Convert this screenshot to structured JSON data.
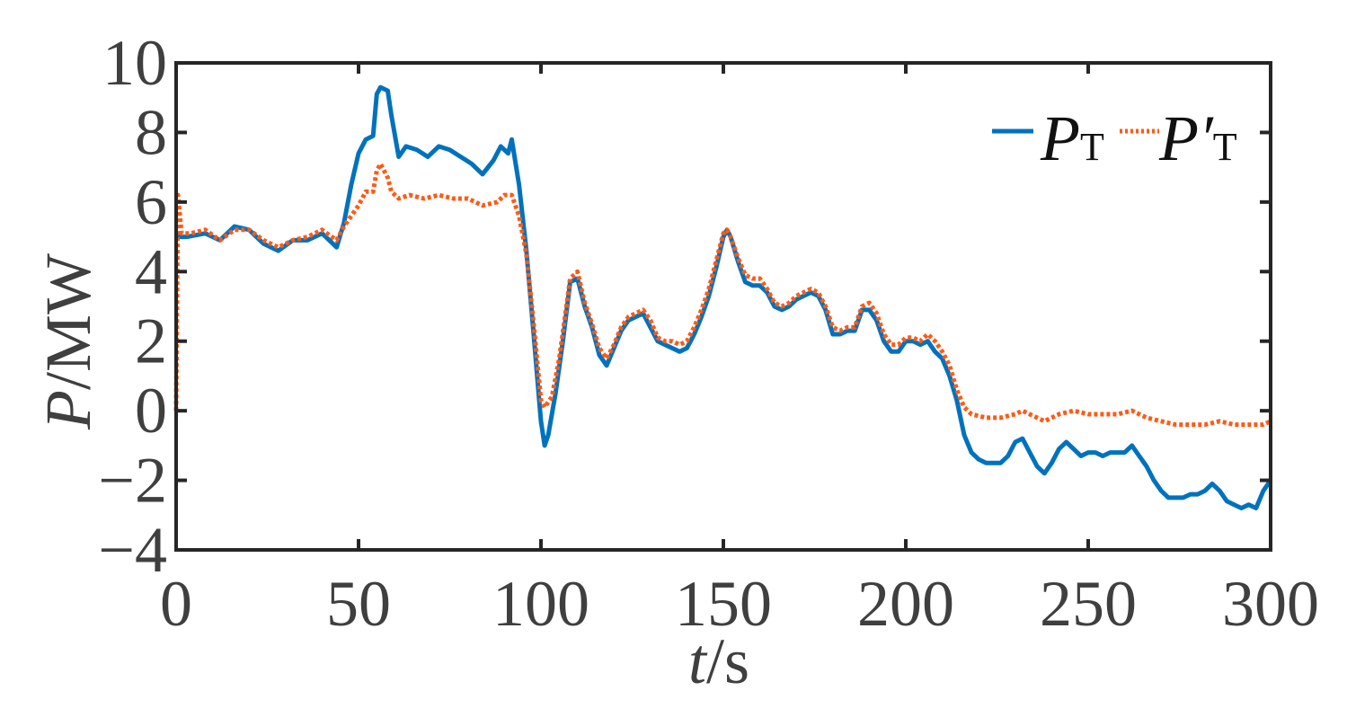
{
  "chart_data": {
    "type": "line",
    "xlabel_italic": "t",
    "xlabel_unit": "/s",
    "ylabel_italic": "P",
    "ylabel_unit": "/MW",
    "xlim": [
      0,
      300
    ],
    "ylim": [
      -4,
      10
    ],
    "xticks": [
      0,
      50,
      100,
      150,
      200,
      250,
      300
    ],
    "yticks": [
      -4,
      -2,
      0,
      2,
      4,
      6,
      8,
      10
    ],
    "xtick_labels": [
      "0",
      "50",
      "100",
      "150",
      "200",
      "250",
      "300"
    ],
    "ytick_labels": [
      "−4",
      "−2",
      "0",
      "2",
      "4",
      "6",
      "8",
      "10"
    ],
    "grid": false,
    "legend_position": "top-right",
    "series": [
      {
        "name": "P_T",
        "legend_main": "P",
        "legend_sub": "T",
        "color": "#0072bd",
        "style": "solid",
        "points": [
          [
            0,
            5.0
          ],
          [
            3,
            5.0
          ],
          [
            8,
            5.1
          ],
          [
            12,
            4.9
          ],
          [
            16,
            5.3
          ],
          [
            20,
            5.2
          ],
          [
            24,
            4.8
          ],
          [
            28,
            4.6
          ],
          [
            32,
            4.9
          ],
          [
            36,
            4.9
          ],
          [
            40,
            5.1
          ],
          [
            44,
            4.7
          ],
          [
            46,
            5.4
          ],
          [
            48,
            6.5
          ],
          [
            50,
            7.4
          ],
          [
            52,
            7.8
          ],
          [
            54,
            7.9
          ],
          [
            55,
            9.1
          ],
          [
            56,
            9.3
          ],
          [
            58,
            9.2
          ],
          [
            59,
            8.5
          ],
          [
            61,
            7.3
          ],
          [
            63,
            7.6
          ],
          [
            66,
            7.5
          ],
          [
            69,
            7.3
          ],
          [
            72,
            7.6
          ],
          [
            75,
            7.5
          ],
          [
            78,
            7.3
          ],
          [
            81,
            7.1
          ],
          [
            84,
            6.8
          ],
          [
            87,
            7.2
          ],
          [
            89,
            7.6
          ],
          [
            91,
            7.4
          ],
          [
            92,
            7.8
          ],
          [
            94,
            6.5
          ],
          [
            96,
            4.6
          ],
          [
            98,
            2.2
          ],
          [
            100,
            -0.3
          ],
          [
            101,
            -1.0
          ],
          [
            102,
            -0.7
          ],
          [
            104,
            0.5
          ],
          [
            106,
            2.0
          ],
          [
            108,
            3.7
          ],
          [
            110,
            3.8
          ],
          [
            112,
            3.0
          ],
          [
            114,
            2.4
          ],
          [
            116,
            1.6
          ],
          [
            118,
            1.3
          ],
          [
            120,
            1.8
          ],
          [
            122,
            2.3
          ],
          [
            124,
            2.6
          ],
          [
            126,
            2.7
          ],
          [
            128,
            2.8
          ],
          [
            130,
            2.4
          ],
          [
            132,
            2.0
          ],
          [
            134,
            1.9
          ],
          [
            136,
            1.8
          ],
          [
            138,
            1.7
          ],
          [
            140,
            1.8
          ],
          [
            142,
            2.2
          ],
          [
            144,
            2.7
          ],
          [
            146,
            3.3
          ],
          [
            148,
            4.1
          ],
          [
            150,
            5.0
          ],
          [
            151,
            5.2
          ],
          [
            152,
            5.0
          ],
          [
            154,
            4.3
          ],
          [
            156,
            3.7
          ],
          [
            158,
            3.6
          ],
          [
            160,
            3.6
          ],
          [
            162,
            3.4
          ],
          [
            164,
            3.0
          ],
          [
            166,
            2.9
          ],
          [
            168,
            3.0
          ],
          [
            170,
            3.2
          ],
          [
            172,
            3.3
          ],
          [
            174,
            3.4
          ],
          [
            176,
            3.3
          ],
          [
            178,
            2.9
          ],
          [
            180,
            2.2
          ],
          [
            182,
            2.2
          ],
          [
            184,
            2.3
          ],
          [
            186,
            2.3
          ],
          [
            188,
            2.9
          ],
          [
            190,
            2.9
          ],
          [
            192,
            2.6
          ],
          [
            194,
            2.0
          ],
          [
            196,
            1.7
          ],
          [
            198,
            1.7
          ],
          [
            200,
            2.0
          ],
          [
            202,
            2.0
          ],
          [
            204,
            1.9
          ],
          [
            206,
            2.0
          ],
          [
            208,
            1.7
          ],
          [
            210,
            1.5
          ],
          [
            212,
            1.0
          ],
          [
            214,
            0.3
          ],
          [
            216,
            -0.7
          ],
          [
            218,
            -1.2
          ],
          [
            220,
            -1.4
          ],
          [
            222,
            -1.5
          ],
          [
            224,
            -1.5
          ],
          [
            226,
            -1.5
          ],
          [
            228,
            -1.3
          ],
          [
            230,
            -0.9
          ],
          [
            232,
            -0.8
          ],
          [
            234,
            -1.2
          ],
          [
            236,
            -1.6
          ],
          [
            238,
            -1.8
          ],
          [
            240,
            -1.5
          ],
          [
            242,
            -1.1
          ],
          [
            244,
            -0.9
          ],
          [
            246,
            -1.1
          ],
          [
            248,
            -1.3
          ],
          [
            250,
            -1.2
          ],
          [
            252,
            -1.2
          ],
          [
            254,
            -1.3
          ],
          [
            256,
            -1.2
          ],
          [
            258,
            -1.2
          ],
          [
            260,
            -1.2
          ],
          [
            262,
            -1.0
          ],
          [
            264,
            -1.3
          ],
          [
            266,
            -1.6
          ],
          [
            268,
            -2.0
          ],
          [
            270,
            -2.3
          ],
          [
            272,
            -2.5
          ],
          [
            274,
            -2.5
          ],
          [
            276,
            -2.5
          ],
          [
            278,
            -2.4
          ],
          [
            280,
            -2.4
          ],
          [
            282,
            -2.3
          ],
          [
            284,
            -2.1
          ],
          [
            286,
            -2.3
          ],
          [
            288,
            -2.6
          ],
          [
            290,
            -2.7
          ],
          [
            292,
            -2.8
          ],
          [
            294,
            -2.7
          ],
          [
            296,
            -2.8
          ],
          [
            298,
            -2.3
          ],
          [
            300,
            -2.0
          ]
        ]
      },
      {
        "name": "P'_T",
        "legend_main": "P′",
        "legend_sub": "T",
        "color": "#ff5a14",
        "style": "dotted",
        "points": [
          [
            0,
            0.0
          ],
          [
            0.5,
            6.2
          ],
          [
            1.5,
            5.1
          ],
          [
            4,
            5.1
          ],
          [
            8,
            5.2
          ],
          [
            12,
            4.9
          ],
          [
            16,
            5.2
          ],
          [
            20,
            5.2
          ],
          [
            24,
            4.9
          ],
          [
            28,
            4.7
          ],
          [
            32,
            4.9
          ],
          [
            36,
            5.0
          ],
          [
            40,
            5.2
          ],
          [
            44,
            4.9
          ],
          [
            46,
            5.3
          ],
          [
            48,
            5.6
          ],
          [
            50,
            5.9
          ],
          [
            52,
            6.3
          ],
          [
            54,
            6.3
          ],
          [
            55,
            6.9
          ],
          [
            56,
            7.1
          ],
          [
            58,
            6.7
          ],
          [
            59,
            6.3
          ],
          [
            61,
            6.1
          ],
          [
            64,
            6.2
          ],
          [
            68,
            6.1
          ],
          [
            72,
            6.2
          ],
          [
            76,
            6.1
          ],
          [
            80,
            6.1
          ],
          [
            84,
            5.9
          ],
          [
            88,
            6.0
          ],
          [
            90,
            6.2
          ],
          [
            92,
            6.2
          ],
          [
            94,
            5.6
          ],
          [
            96,
            4.5
          ],
          [
            98,
            2.5
          ],
          [
            100,
            0.3
          ],
          [
            101,
            0.1
          ],
          [
            103,
            0.4
          ],
          [
            105,
            1.5
          ],
          [
            107,
            3.0
          ],
          [
            108,
            3.8
          ],
          [
            110,
            4.0
          ],
          [
            112,
            3.1
          ],
          [
            114,
            2.5
          ],
          [
            116,
            1.8
          ],
          [
            118,
            1.5
          ],
          [
            120,
            1.9
          ],
          [
            122,
            2.4
          ],
          [
            124,
            2.7
          ],
          [
            126,
            2.8
          ],
          [
            128,
            2.9
          ],
          [
            130,
            2.6
          ],
          [
            132,
            2.1
          ],
          [
            134,
            2.0
          ],
          [
            136,
            2.0
          ],
          [
            138,
            1.9
          ],
          [
            140,
            2.0
          ],
          [
            142,
            2.4
          ],
          [
            144,
            2.9
          ],
          [
            146,
            3.5
          ],
          [
            148,
            4.3
          ],
          [
            150,
            5.1
          ],
          [
            151,
            5.2
          ],
          [
            152,
            5.0
          ],
          [
            154,
            4.4
          ],
          [
            156,
            3.9
          ],
          [
            158,
            3.8
          ],
          [
            160,
            3.8
          ],
          [
            162,
            3.5
          ],
          [
            164,
            3.1
          ],
          [
            166,
            3.0
          ],
          [
            168,
            3.1
          ],
          [
            170,
            3.3
          ],
          [
            172,
            3.4
          ],
          [
            174,
            3.5
          ],
          [
            176,
            3.4
          ],
          [
            178,
            3.0
          ],
          [
            180,
            2.4
          ],
          [
            182,
            2.3
          ],
          [
            184,
            2.4
          ],
          [
            186,
            2.4
          ],
          [
            188,
            3.0
          ],
          [
            190,
            3.1
          ],
          [
            192,
            2.8
          ],
          [
            194,
            2.2
          ],
          [
            196,
            1.9
          ],
          [
            198,
            1.9
          ],
          [
            200,
            2.1
          ],
          [
            202,
            2.1
          ],
          [
            204,
            2.0
          ],
          [
            206,
            2.2
          ],
          [
            208,
            2.0
          ],
          [
            210,
            1.7
          ],
          [
            212,
            1.3
          ],
          [
            214,
            0.6
          ],
          [
            216,
            0.1
          ],
          [
            218,
            -0.1
          ],
          [
            222,
            -0.2
          ],
          [
            226,
            -0.2
          ],
          [
            230,
            -0.1
          ],
          [
            232,
            0.0
          ],
          [
            234,
            -0.1
          ],
          [
            238,
            -0.3
          ],
          [
            242,
            -0.1
          ],
          [
            246,
            0.0
          ],
          [
            250,
            -0.1
          ],
          [
            254,
            -0.1
          ],
          [
            258,
            -0.1
          ],
          [
            262,
            0.0
          ],
          [
            266,
            -0.2
          ],
          [
            270,
            -0.3
          ],
          [
            274,
            -0.4
          ],
          [
            278,
            -0.4
          ],
          [
            282,
            -0.4
          ],
          [
            286,
            -0.3
          ],
          [
            290,
            -0.4
          ],
          [
            294,
            -0.4
          ],
          [
            298,
            -0.4
          ],
          [
            300,
            -0.3
          ]
        ]
      }
    ]
  }
}
